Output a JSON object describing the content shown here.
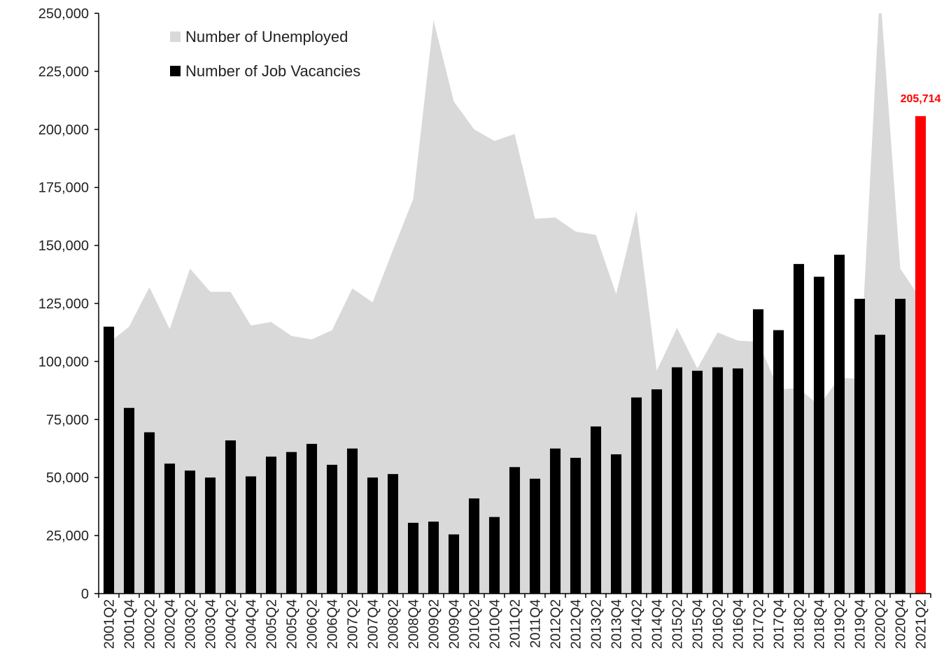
{
  "chart_data": {
    "type": "combo",
    "categories": [
      "2001Q2",
      "2001Q4",
      "2002Q2",
      "2002Q4",
      "2003Q2",
      "2003Q4",
      "2004Q2",
      "2004Q4",
      "2005Q2",
      "2005Q4",
      "2006Q2",
      "2006Q4",
      "2007Q2",
      "2007Q4",
      "2008Q2",
      "2008Q4",
      "2009Q2",
      "2009Q4",
      "2010Q2",
      "2010Q4",
      "2011Q2",
      "2011Q4",
      "2012Q2",
      "2012Q4",
      "2013Q2",
      "2013Q4",
      "2014Q2",
      "2014Q4",
      "2015Q2",
      "2015Q4",
      "2016Q2",
      "2016Q4",
      "2017Q2",
      "2017Q4",
      "2018Q2",
      "2018Q4",
      "2019Q2",
      "2019Q4",
      "2020Q2",
      "2020Q4",
      "2021Q2"
    ],
    "series": [
      {
        "name": "Number of Unemployed",
        "type": "area",
        "color": "#d9d9d9",
        "values": [
          108000,
          115000,
          132000,
          114000,
          140000,
          130000,
          130000,
          115500,
          117000,
          111000,
          109500,
          113500,
          131500,
          125500,
          148000,
          170000,
          247000,
          212000,
          200000,
          195000,
          198000,
          161500,
          162000,
          156000,
          154500,
          129000,
          165000,
          96000,
          114500,
          97000,
          112500,
          109000,
          108500,
          88000,
          88500,
          81000,
          93000,
          92500,
          260000,
          140000,
          127000
        ]
      },
      {
        "name": "Number of Job Vacancies",
        "type": "bar",
        "color": "#000000",
        "colors": [
          "#000000",
          "#000000",
          "#000000",
          "#000000",
          "#000000",
          "#000000",
          "#000000",
          "#000000",
          "#000000",
          "#000000",
          "#000000",
          "#000000",
          "#000000",
          "#000000",
          "#000000",
          "#000000",
          "#000000",
          "#000000",
          "#000000",
          "#000000",
          "#000000",
          "#000000",
          "#000000",
          "#000000",
          "#000000",
          "#000000",
          "#000000",
          "#000000",
          "#000000",
          "#000000",
          "#000000",
          "#000000",
          "#000000",
          "#000000",
          "#000000",
          "#000000",
          "#000000",
          "#000000",
          "#000000",
          "#000000",
          "#ff0000"
        ],
        "values": [
          115000,
          80000,
          69500,
          56000,
          53000,
          50000,
          66000,
          50500,
          59000,
          61000,
          64500,
          55500,
          62500,
          50000,
          51500,
          30500,
          31000,
          25500,
          41000,
          33000,
          54500,
          49500,
          62500,
          58500,
          72000,
          60000,
          84500,
          88000,
          97500,
          96000,
          97500,
          97000,
          122500,
          113500,
          142000,
          136500,
          146000,
          127000,
          111500,
          127000,
          205714
        ],
        "value_labels": [
          null,
          null,
          null,
          null,
          null,
          null,
          null,
          null,
          null,
          null,
          null,
          null,
          null,
          null,
          null,
          null,
          null,
          null,
          null,
          null,
          null,
          null,
          null,
          null,
          null,
          null,
          null,
          null,
          null,
          null,
          null,
          null,
          null,
          null,
          null,
          null,
          null,
          null,
          null,
          null,
          "205,714"
        ],
        "value_label_color": "#ff0000"
      }
    ],
    "ylim": [
      0,
      250000
    ],
    "yticks": [
      0,
      {
        "value": 25000,
        "label": "25,000"
      },
      {
        "value": 50000,
        "label": "50,000"
      },
      {
        "value": 75000,
        "label": "75,000"
      },
      {
        "value": 100000,
        "label": "100,000"
      },
      {
        "value": 125000,
        "label": "125,000"
      },
      {
        "value": 150000,
        "label": "150,000"
      },
      {
        "value": 175000,
        "label": "175,000"
      },
      {
        "value": 200000,
        "label": "200,000"
      },
      {
        "value": 225000,
        "label": "225,000"
      },
      {
        "value": 250000,
        "label": "250,000"
      }
    ],
    "grid": false,
    "legend": "top-left"
  }
}
